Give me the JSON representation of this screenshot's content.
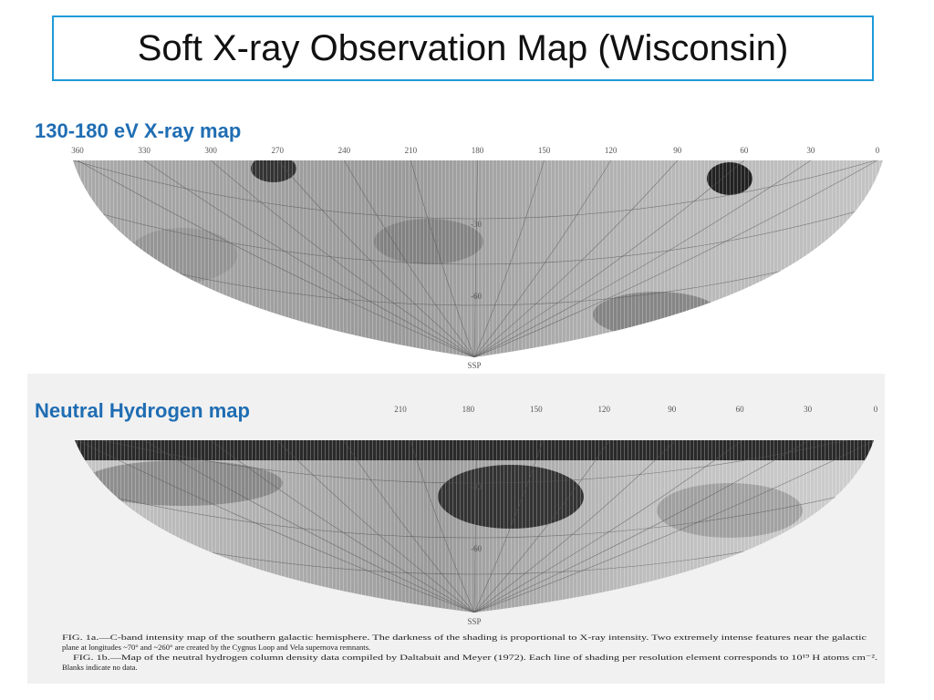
{
  "header": {
    "title": "Soft X-ray Observation Map (Wisconsin)"
  },
  "panels": [
    {
      "label": "130-180 eV  X-ray map",
      "longitudes": [
        "360",
        "330",
        "300",
        "270",
        "240",
        "210",
        "180",
        "150",
        "120",
        "90",
        "60",
        "30",
        "0"
      ],
      "latitudes": [
        "-30",
        "-60"
      ],
      "pole": "SSP"
    },
    {
      "label": "Neutral Hydrogen  map",
      "longitudes": [
        "210",
        "180",
        "150",
        "120",
        "90",
        "60",
        "30",
        "0"
      ],
      "latitudes": [
        "-30",
        "-60"
      ],
      "pole": "SSP"
    }
  ],
  "caption": {
    "lines": [
      "FIG. 1a.—C-band intensity map of the southern galactic hemisphere. The darkness of the shading is proportional to X-ray intensity. Two extremely intense features near the galactic",
      "plane at longitudes ~70° and ~260° are created by the Cygnus Loop and Vela supernova remnants.",
      "FIG. 1b.—Map of the neutral hydrogen column density data compiled by Daltabuit and Meyer (1972). Each line of shading per resolution element corresponds to 10¹⁹ H atoms cm⁻².",
      "Blanks indicate no data."
    ]
  }
}
